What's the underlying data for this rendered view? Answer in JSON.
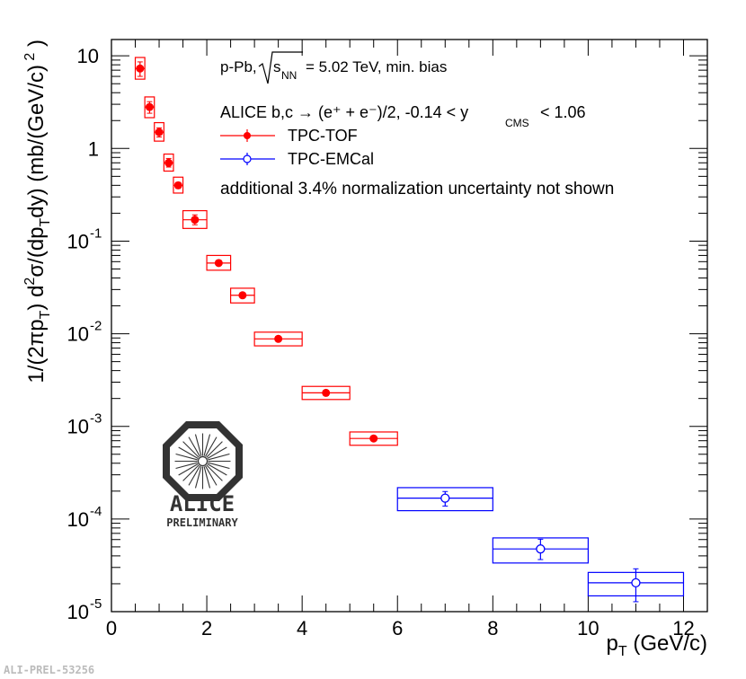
{
  "chart_data": {
    "type": "scatter",
    "x_scale": "linear",
    "y_scale": "log",
    "xlim": [
      0,
      12.5
    ],
    "ylim": [
      1e-05,
      15
    ],
    "xlabel": "p_T (GeV/c)",
    "ylabel": "1/(2πp_T) d²σ/(dp_T dy) (mb/(GeV/c)²)",
    "x_ticks": [
      0,
      2,
      4,
      6,
      8,
      10,
      12
    ],
    "x_tick_labels": [
      "0",
      "2",
      "4",
      "6",
      "8",
      "10",
      "12"
    ],
    "y_tick_labels": [
      {
        "v": 10,
        "base": "10",
        "exp": ""
      },
      {
        "v": 1,
        "base": "1",
        "exp": ""
      },
      {
        "v": 0.1,
        "base": "10",
        "exp": "-1"
      },
      {
        "v": 0.01,
        "base": "10",
        "exp": "-2"
      },
      {
        "v": 0.001,
        "base": "10",
        "exp": "-3"
      },
      {
        "v": 0.0001,
        "base": "10",
        "exp": "-4"
      },
      {
        "v": 1e-05,
        "base": "10",
        "exp": "-5"
      }
    ],
    "annotations": {
      "system": "p-Pb,",
      "energy": "= 5.02 TeV, min. bias",
      "sqrt_s": "s",
      "sqrt_sub": "NN",
      "alice_line": "ALICE b,c → (e⁺ + e⁻)/2, -0.14 < y",
      "cms_sub": "CMS",
      "rapidity_end": "< 1.06",
      "note": "additional 3.4% normalization uncertainty not shown"
    },
    "series": [
      {
        "name": "TPC-TOF",
        "color": "#ff0000",
        "marker": "filled-circle",
        "points": [
          {
            "x": 0.6,
            "xlo": 0.5,
            "xhi": 0.7,
            "y": 7.3,
            "sys_lo": 5.6,
            "sys_hi": 9.6,
            "stat_lo": 6.0,
            "stat_hi": 8.6
          },
          {
            "x": 0.8,
            "xlo": 0.7,
            "xhi": 0.9,
            "y": 2.8,
            "sys_lo": 2.15,
            "sys_hi": 3.6,
            "stat_lo": 2.4,
            "stat_hi": 3.2
          },
          {
            "x": 1.0,
            "xlo": 0.9,
            "xhi": 1.1,
            "y": 1.5,
            "sys_lo": 1.2,
            "sys_hi": 1.9,
            "stat_lo": 1.33,
            "stat_hi": 1.67
          },
          {
            "x": 1.2,
            "xlo": 1.1,
            "xhi": 1.3,
            "y": 0.7,
            "sys_lo": 0.57,
            "sys_hi": 0.87,
            "stat_lo": 0.63,
            "stat_hi": 0.78
          },
          {
            "x": 1.4,
            "xlo": 1.3,
            "xhi": 1.5,
            "y": 0.4,
            "sys_lo": 0.33,
            "sys_hi": 0.49,
            "stat_lo": 0.37,
            "stat_hi": 0.43
          },
          {
            "x": 1.75,
            "xlo": 1.5,
            "xhi": 2.0,
            "y": 0.17,
            "sys_lo": 0.137,
            "sys_hi": 0.213,
            "stat_lo": 0.15,
            "stat_hi": 0.192
          },
          {
            "x": 2.25,
            "xlo": 2.0,
            "xhi": 2.5,
            "y": 0.058,
            "sys_lo": 0.0485,
            "sys_hi": 0.07,
            "stat_lo": 0.055,
            "stat_hi": 0.061
          },
          {
            "x": 2.75,
            "xlo": 2.5,
            "xhi": 3.0,
            "y": 0.026,
            "sys_lo": 0.0215,
            "sys_hi": 0.031,
            "stat_lo": 0.0248,
            "stat_hi": 0.0272
          },
          {
            "x": 3.5,
            "xlo": 3.0,
            "xhi": 4.0,
            "y": 0.0088,
            "sys_lo": 0.0074,
            "sys_hi": 0.0104,
            "stat_lo": 0.0085,
            "stat_hi": 0.0091
          },
          {
            "x": 4.5,
            "xlo": 4.0,
            "xhi": 5.0,
            "y": 0.0023,
            "sys_lo": 0.00195,
            "sys_hi": 0.0027,
            "stat_lo": 0.00222,
            "stat_hi": 0.00238
          },
          {
            "x": 5.5,
            "xlo": 5.0,
            "xhi": 6.0,
            "y": 0.00074,
            "sys_lo": 0.000625,
            "sys_hi": 0.00087,
            "stat_lo": 0.00071,
            "stat_hi": 0.00077
          }
        ]
      },
      {
        "name": "TPC-EMCal",
        "color": "#0000ff",
        "marker": "open-circle",
        "points": [
          {
            "x": 7,
            "xlo": 6,
            "xhi": 8,
            "y": 0.000168,
            "sys_lo": 0.000123,
            "sys_hi": 0.000218,
            "stat_lo": 0.000138,
            "stat_hi": 0.000198
          },
          {
            "x": 9,
            "xlo": 8,
            "xhi": 10,
            "y": 4.75e-05,
            "sys_lo": 3.35e-05,
            "sys_hi": 6.25e-05,
            "stat_lo": 3.65e-05,
            "stat_hi": 6.05e-05
          },
          {
            "x": 11,
            "xlo": 10,
            "xhi": 12,
            "y": 2.05e-05,
            "sys_lo": 1.48e-05,
            "sys_hi": 2.65e-05,
            "stat_lo": 1.28e-05,
            "stat_hi": 2.9e-05
          }
        ]
      }
    ]
  },
  "logo": {
    "name": "ALICE",
    "tag": "PRELIMINARY"
  },
  "footer": {
    "label": "ALI-PREL-53256"
  }
}
